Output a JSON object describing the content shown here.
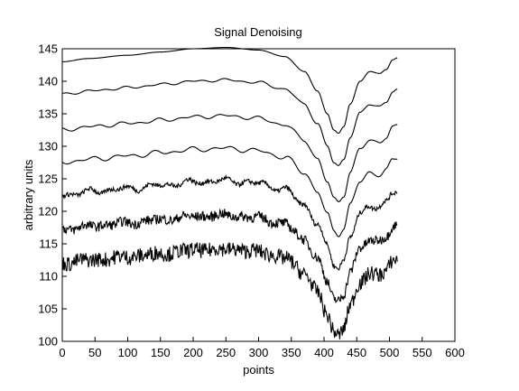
{
  "chart_data": {
    "type": "line",
    "title": "Signal Denoising",
    "xlabel": "points",
    "ylabel": "arbitrary units",
    "xlim": [
      0,
      600
    ],
    "ylim": [
      100,
      145
    ],
    "xticks": [
      0,
      50,
      100,
      150,
      200,
      250,
      300,
      350,
      400,
      450,
      500,
      550,
      600
    ],
    "yticks": [
      100,
      105,
      110,
      115,
      120,
      125,
      130,
      135,
      140,
      145
    ],
    "grid": false,
    "legend": "none",
    "line_color": "#000000",
    "x_range": [
      0,
      512
    ],
    "series": [
      {
        "offset": 31,
        "noise": 0.0,
        "ripple": 0.0
      },
      {
        "offset": 26,
        "noise": 0.0,
        "ripple": 0.25
      },
      {
        "offset": 20.5,
        "noise": 0.0,
        "ripple": 0.35
      },
      {
        "offset": 15.5,
        "noise": 0.0,
        "ripple": 0.45
      },
      {
        "offset": 10.5,
        "noise": 0.25,
        "ripple": 0.5
      },
      {
        "offset": 5.2,
        "noise": 0.55,
        "ripple": 0.3
      },
      {
        "offset": 0,
        "noise": 0.85,
        "ripple": 0.2
      }
    ],
    "base_points": [
      [
        0,
        112.0
      ],
      [
        40,
        112.5
      ],
      [
        100,
        113.0
      ],
      [
        150,
        113.5
      ],
      [
        200,
        114.0
      ],
      [
        250,
        114.2
      ],
      [
        300,
        113.8
      ],
      [
        340,
        112.8
      ],
      [
        370,
        110.5
      ],
      [
        390,
        107.5
      ],
      [
        405,
        104.0
      ],
      [
        415,
        101.5
      ],
      [
        422,
        101.0
      ],
      [
        430,
        102.0
      ],
      [
        440,
        105.5
      ],
      [
        455,
        109.0
      ],
      [
        470,
        110.5
      ],
      [
        485,
        110.2
      ],
      [
        495,
        110.8
      ],
      [
        505,
        112.3
      ],
      [
        512,
        112.6
      ]
    ]
  }
}
